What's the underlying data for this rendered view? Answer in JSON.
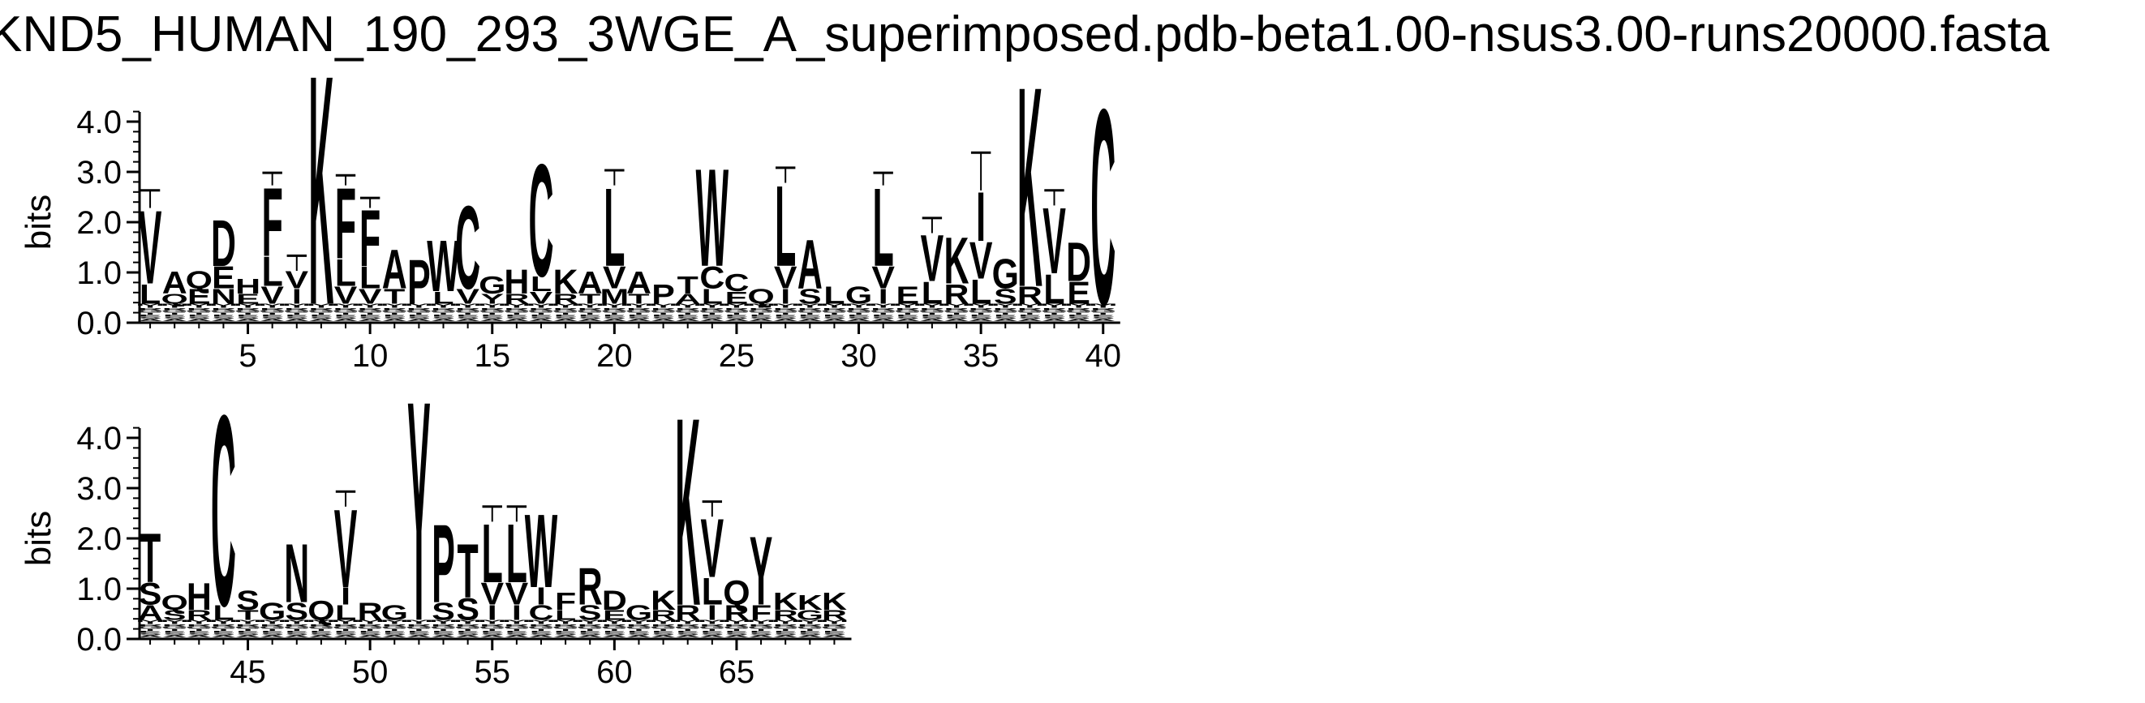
{
  "chart_data": {
    "type": "sequence-logo",
    "title": "KND5_HUMAN_190_293_3WGE_A_superimposed.pdb-beta1.00-nsus3.00-runs20000.fasta",
    "ylabel": "bits",
    "ylim": [
      0,
      4.0
    ],
    "yticks": [
      "0.0",
      "1.0",
      "2.0",
      "3.0",
      "4.0"
    ],
    "panels": [
      {
        "xticks": [
          5,
          10,
          15,
          20,
          25,
          30,
          35,
          40
        ],
        "positions": [
          {
            "pos": 1,
            "stack": [
              [
                "V",
                1.5
              ],
              [
                "L",
                0.4
              ]
            ],
            "err": 0.35
          },
          {
            "pos": 2,
            "stack": [
              [
                "A",
                0.45
              ],
              [
                "Q",
                0.2
              ]
            ]
          },
          {
            "pos": 3,
            "stack": [
              [
                "Q",
                0.35
              ],
              [
                "E",
                0.3
              ]
            ]
          },
          {
            "pos": 4,
            "stack": [
              [
                "D",
                0.95
              ],
              [
                "E",
                0.45
              ],
              [
                "N",
                0.3
              ]
            ]
          },
          {
            "pos": 5,
            "stack": [
              [
                "H",
                0.3
              ],
              [
                "E",
                0.2
              ]
            ]
          },
          {
            "pos": 6,
            "stack": [
              [
                "F",
                1.4
              ],
              [
                "L",
                0.6
              ],
              [
                "V",
                0.35
              ]
            ],
            "err": 0.25
          },
          {
            "pos": 7,
            "stack": [
              [
                "V",
                0.35
              ],
              [
                "I",
                0.3
              ]
            ],
            "err": 0.3
          },
          {
            "pos": 8,
            "stack": [
              [
                "K",
                4.7
              ]
            ]
          },
          {
            "pos": 9,
            "stack": [
              [
                "F",
                1.45
              ],
              [
                "L",
                0.55
              ],
              [
                "V",
                0.35
              ]
            ],
            "err": 0.2
          },
          {
            "pos": 10,
            "stack": [
              [
                "F",
                1.15
              ],
              [
                "L",
                0.45
              ],
              [
                "V",
                0.3
              ]
            ],
            "err": 0.2
          },
          {
            "pos": 11,
            "stack": [
              [
                "A",
                0.8
              ],
              [
                "T",
                0.3
              ]
            ]
          },
          {
            "pos": 12,
            "stack": [
              [
                "P",
                0.9
              ]
            ]
          },
          {
            "pos": 13,
            "stack": [
              [
                "W",
                1.05
              ],
              [
                "L",
                0.25
              ]
            ]
          },
          {
            "pos": 14,
            "stack": [
              [
                "C",
                1.7
              ],
              [
                "V",
                0.3
              ]
            ]
          },
          {
            "pos": 15,
            "stack": [
              [
                "G",
                0.35
              ],
              [
                "Y",
                0.2
              ]
            ]
          },
          {
            "pos": 16,
            "stack": [
              [
                "H",
                0.5
              ],
              [
                "R",
                0.2
              ]
            ]
          },
          {
            "pos": 17,
            "stack": [
              [
                "C",
                2.3
              ],
              [
                "L",
                0.3
              ],
              [
                "V",
                0.25
              ]
            ]
          },
          {
            "pos": 18,
            "stack": [
              [
                "K",
                0.5
              ],
              [
                "R",
                0.2
              ]
            ]
          },
          {
            "pos": 19,
            "stack": [
              [
                "A",
                0.45
              ],
              [
                "T",
                0.2
              ]
            ]
          },
          {
            "pos": 20,
            "stack": [
              [
                "L",
                1.6
              ],
              [
                "V",
                0.45
              ],
              [
                "M",
                0.3
              ]
            ],
            "err": 0.3
          },
          {
            "pos": 21,
            "stack": [
              [
                "A",
                0.45
              ],
              [
                "T",
                0.2
              ]
            ]
          },
          {
            "pos": 22,
            "stack": [
              [
                "P",
                0.4
              ]
            ]
          },
          {
            "pos": 23,
            "stack": [
              [
                "T",
                0.35
              ],
              [
                "A",
                0.2
              ]
            ]
          },
          {
            "pos": 24,
            "stack": [
              [
                "W",
                2.0
              ],
              [
                "C",
                0.45
              ],
              [
                "L",
                0.3
              ]
            ]
          },
          {
            "pos": 25,
            "stack": [
              [
                "C",
                0.35
              ],
              [
                "E",
                0.25
              ]
            ]
          },
          {
            "pos": 26,
            "stack": [
              [
                "Q",
                0.3
              ]
            ]
          },
          {
            "pos": 27,
            "stack": [
              [
                "L",
                1.65
              ],
              [
                "V",
                0.45
              ],
              [
                "I",
                0.3
              ]
            ],
            "err": 0.3
          },
          {
            "pos": 28,
            "stack": [
              [
                "A",
                1.0
              ],
              [
                "S",
                0.3
              ]
            ]
          },
          {
            "pos": 29,
            "stack": [
              [
                "L",
                0.35
              ]
            ]
          },
          {
            "pos": 30,
            "stack": [
              [
                "G",
                0.35
              ]
            ]
          },
          {
            "pos": 31,
            "stack": [
              [
                "L",
                1.6
              ],
              [
                "V",
                0.45
              ],
              [
                "I",
                0.3
              ]
            ],
            "err": 0.25
          },
          {
            "pos": 32,
            "stack": [
              [
                "E",
                0.35
              ]
            ]
          },
          {
            "pos": 33,
            "stack": [
              [
                "V",
                0.95
              ],
              [
                "L",
                0.45
              ]
            ],
            "err": 0.3
          },
          {
            "pos": 34,
            "stack": [
              [
                "K",
                0.95
              ],
              [
                "R",
                0.4
              ]
            ]
          },
          {
            "pos": 35,
            "stack": [
              [
                "I",
                1.0
              ],
              [
                "V",
                0.75
              ],
              [
                "L",
                0.5
              ]
            ],
            "err": 0.75
          },
          {
            "pos": 36,
            "stack": [
              [
                "G",
                0.6
              ],
              [
                "S",
                0.3
              ]
            ]
          },
          {
            "pos": 37,
            "stack": [
              [
                "K",
                4.1
              ],
              [
                "R",
                0.35
              ]
            ]
          },
          {
            "pos": 38,
            "stack": [
              [
                "V",
                1.35
              ],
              [
                "L",
                0.6
              ]
            ],
            "err": 0.3
          },
          {
            "pos": 39,
            "stack": [
              [
                "D",
                0.8
              ],
              [
                "E",
                0.45
              ]
            ]
          },
          {
            "pos": 40,
            "stack": [
              [
                "C",
                4.0
              ]
            ]
          }
        ]
      },
      {
        "xticks": [
          45,
          50,
          55,
          60,
          65
        ],
        "positions": [
          {
            "pos": 41,
            "stack": [
              [
                "T",
                1.0
              ],
              [
                "S",
                0.45
              ],
              [
                "A",
                0.3
              ]
            ]
          },
          {
            "pos": 42,
            "stack": [
              [
                "Q",
                0.3
              ],
              [
                "S",
                0.2
              ]
            ]
          },
          {
            "pos": 43,
            "stack": [
              [
                "H",
                0.55
              ],
              [
                "R",
                0.2
              ]
            ]
          },
          {
            "pos": 44,
            "stack": [
              [
                "C",
                3.9
              ],
              [
                "L",
                0.3
              ]
            ]
          },
          {
            "pos": 45,
            "stack": [
              [
                "S",
                0.4
              ],
              [
                "T",
                0.2
              ]
            ]
          },
          {
            "pos": 46,
            "stack": [
              [
                "G",
                0.35
              ]
            ]
          },
          {
            "pos": 47,
            "stack": [
              [
                "N",
                1.2
              ],
              [
                "S",
                0.35
              ]
            ]
          },
          {
            "pos": 48,
            "stack": [
              [
                "Q",
                0.4
              ]
            ]
          },
          {
            "pos": 49,
            "stack": [
              [
                "V",
                1.6
              ],
              [
                "I",
                0.35
              ],
              [
                "L",
                0.3
              ]
            ],
            "err": 0.3
          },
          {
            "pos": 50,
            "stack": [
              [
                "R",
                0.35
              ]
            ]
          },
          {
            "pos": 51,
            "stack": [
              [
                "G",
                0.3
              ]
            ]
          },
          {
            "pos": 52,
            "stack": [
              [
                "Y",
                4.5
              ]
            ]
          },
          {
            "pos": 53,
            "stack": [
              [
                "P",
                1.6
              ],
              [
                "S",
                0.35
              ]
            ]
          },
          {
            "pos": 54,
            "stack": [
              [
                "T",
                1.1
              ],
              [
                "S",
                0.45
              ]
            ]
          },
          {
            "pos": 55,
            "stack": [
              [
                "L",
                1.2
              ],
              [
                "V",
                0.45
              ],
              [
                "I",
                0.3
              ]
            ],
            "err": 0.3
          },
          {
            "pos": 56,
            "stack": [
              [
                "L",
                1.2
              ],
              [
                "V",
                0.45
              ],
              [
                "I",
                0.3
              ]
            ],
            "err": 0.3
          },
          {
            "pos": 57,
            "stack": [
              [
                "W",
                1.5
              ],
              [
                "I",
                0.35
              ],
              [
                "C",
                0.3
              ]
            ]
          },
          {
            "pos": 58,
            "stack": [
              [
                "F",
                0.35
              ],
              [
                "L",
                0.2
              ]
            ]
          },
          {
            "pos": 59,
            "stack": [
              [
                "R",
                0.75
              ],
              [
                "S",
                0.3
              ]
            ]
          },
          {
            "pos": 60,
            "stack": [
              [
                "D",
                0.4
              ],
              [
                "E",
                0.2
              ]
            ]
          },
          {
            "pos": 61,
            "stack": [
              [
                "G",
                0.3
              ]
            ]
          },
          {
            "pos": 62,
            "stack": [
              [
                "K",
                0.4
              ],
              [
                "R",
                0.2
              ]
            ]
          },
          {
            "pos": 63,
            "stack": [
              [
                "K",
                3.85
              ],
              [
                "R",
                0.3
              ]
            ]
          },
          {
            "pos": 64,
            "stack": [
              [
                "V",
                1.2
              ],
              [
                "L",
                0.55
              ],
              [
                "I",
                0.3
              ]
            ],
            "err": 0.3
          },
          {
            "pos": 65,
            "stack": [
              [
                "Q",
                0.5
              ],
              [
                "R",
                0.3
              ]
            ]
          },
          {
            "pos": 66,
            "stack": [
              [
                "Y",
                1.4
              ],
              [
                "F",
                0.3
              ]
            ]
          },
          {
            "pos": 67,
            "stack": [
              [
                "K",
                0.35
              ],
              [
                "R",
                0.2
              ]
            ]
          },
          {
            "pos": 68,
            "stack": [
              [
                "K",
                0.3
              ],
              [
                "G",
                0.2
              ]
            ]
          },
          {
            "pos": 69,
            "stack": [
              [
                "K",
                0.35
              ],
              [
                "R",
                0.2
              ]
            ]
          }
        ]
      }
    ],
    "colors": {
      "letters": "#000000",
      "background": "#ffffff"
    }
  }
}
